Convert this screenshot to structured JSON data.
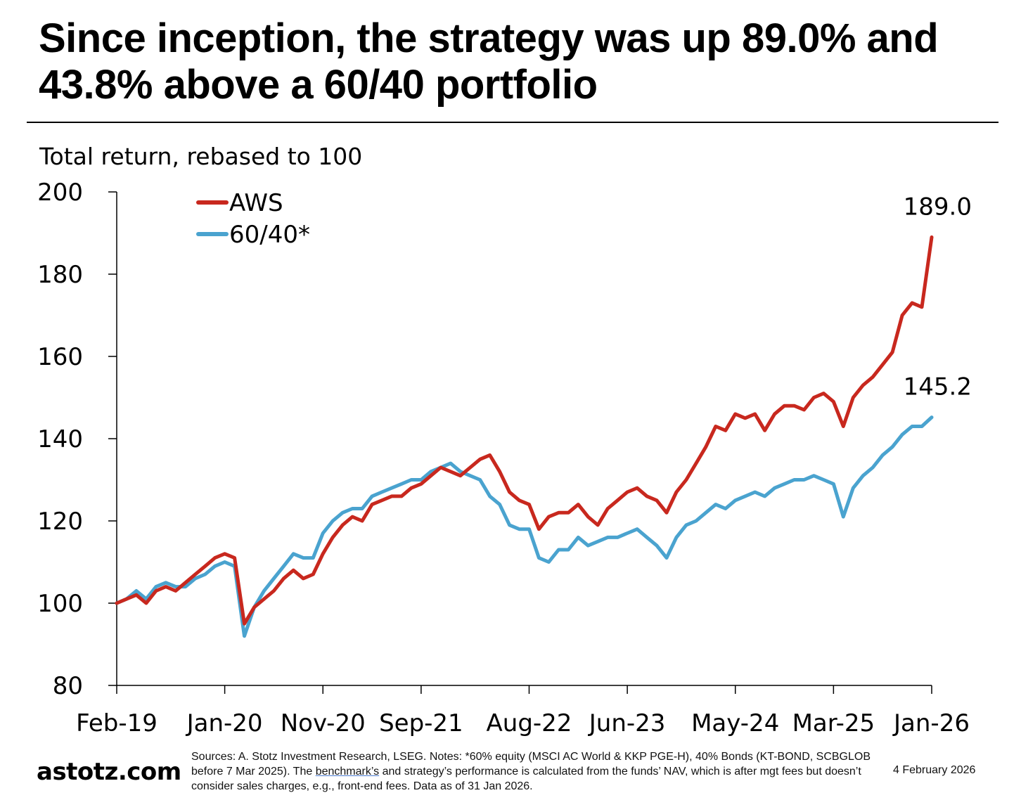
{
  "title": "Since inception, the strategy was up 89.0% and 43.8% above a 60/40 portfolio",
  "footer": {
    "brand": "astotz.com",
    "sources_prefix": "Sources: A. Stotz Investment Research, LSEG. Notes: *60% equity (MSCI AC World & KKP PGE-H), 40% Bonds (KT-BOND, SCBGLOB before 7 Mar 2025). The ",
    "sources_link": "benchmark’s",
    "sources_suffix": " and strategy’s performance is calculated from the funds’ NAV, which is after mgt fees but doesn’t consider sales charges, e.g., front-end fees. Data as of 31 Jan 2026.",
    "date": "4 February 2026"
  },
  "chart_data": {
    "type": "line",
    "title": "",
    "ylabel": "Total return, rebased to 100",
    "xlabel": "",
    "ylim": [
      80,
      200
    ],
    "yticks": [
      80,
      100,
      120,
      140,
      160,
      180,
      200
    ],
    "xticks": [
      "Feb-19",
      "Jan-20",
      "Nov-20",
      "Sep-21",
      "Aug-22",
      "Jun-23",
      "May-24",
      "Mar-25",
      "Jan-26"
    ],
    "x_range_months": [
      "Feb-19",
      "Jan-26"
    ],
    "legend_position": "top-left",
    "grid": false,
    "series": [
      {
        "name": "AWS",
        "color": "#c8281e",
        "end_label": "189.0",
        "points": [
          [
            "Feb-19",
            100
          ],
          [
            "Mar-19",
            101
          ],
          [
            "Apr-19",
            102
          ],
          [
            "May-19",
            100
          ],
          [
            "Jun-19",
            103
          ],
          [
            "Jul-19",
            104
          ],
          [
            "Aug-19",
            103
          ],
          [
            "Sep-19",
            105
          ],
          [
            "Oct-19",
            107
          ],
          [
            "Nov-19",
            109
          ],
          [
            "Dec-19",
            111
          ],
          [
            "Jan-20",
            112
          ],
          [
            "Feb-20",
            111
          ],
          [
            "Mar-20",
            95
          ],
          [
            "Apr-20",
            99
          ],
          [
            "May-20",
            101
          ],
          [
            "Jun-20",
            103
          ],
          [
            "Jul-20",
            106
          ],
          [
            "Aug-20",
            108
          ],
          [
            "Sep-20",
            106
          ],
          [
            "Oct-20",
            107
          ],
          [
            "Nov-20",
            112
          ],
          [
            "Dec-20",
            116
          ],
          [
            "Jan-21",
            119
          ],
          [
            "Feb-21",
            121
          ],
          [
            "Mar-21",
            120
          ],
          [
            "Apr-21",
            124
          ],
          [
            "May-21",
            125
          ],
          [
            "Jun-21",
            126
          ],
          [
            "Jul-21",
            126
          ],
          [
            "Aug-21",
            128
          ],
          [
            "Sep-21",
            129
          ],
          [
            "Oct-21",
            131
          ],
          [
            "Nov-21",
            133
          ],
          [
            "Dec-21",
            132
          ],
          [
            "Jan-22",
            131
          ],
          [
            "Feb-22",
            133
          ],
          [
            "Mar-22",
            135
          ],
          [
            "Apr-22",
            136
          ],
          [
            "May-22",
            132
          ],
          [
            "Jun-22",
            127
          ],
          [
            "Jul-22",
            125
          ],
          [
            "Aug-22",
            124
          ],
          [
            "Sep-22",
            118
          ],
          [
            "Oct-22",
            121
          ],
          [
            "Nov-22",
            122
          ],
          [
            "Dec-22",
            122
          ],
          [
            "Jan-23",
            124
          ],
          [
            "Feb-23",
            121
          ],
          [
            "Mar-23",
            119
          ],
          [
            "Apr-23",
            123
          ],
          [
            "May-23",
            125
          ],
          [
            "Jun-23",
            127
          ],
          [
            "Jul-23",
            128
          ],
          [
            "Aug-23",
            126
          ],
          [
            "Sep-23",
            125
          ],
          [
            "Oct-23",
            122
          ],
          [
            "Nov-23",
            127
          ],
          [
            "Dec-23",
            130
          ],
          [
            "Jan-24",
            134
          ],
          [
            "Feb-24",
            138
          ],
          [
            "Mar-24",
            143
          ],
          [
            "Apr-24",
            142
          ],
          [
            "May-24",
            146
          ],
          [
            "Jun-24",
            145
          ],
          [
            "Jul-24",
            146
          ],
          [
            "Aug-24",
            142
          ],
          [
            "Sep-24",
            146
          ],
          [
            "Oct-24",
            148
          ],
          [
            "Nov-24",
            148
          ],
          [
            "Dec-24",
            147
          ],
          [
            "Jan-25",
            150
          ],
          [
            "Feb-25",
            151
          ],
          [
            "Mar-25",
            149
          ],
          [
            "Apr-25",
            143
          ],
          [
            "May-25",
            150
          ],
          [
            "Jun-25",
            153
          ],
          [
            "Jul-25",
            155
          ],
          [
            "Aug-25",
            158
          ],
          [
            "Sep-25",
            161
          ],
          [
            "Oct-25",
            170
          ],
          [
            "Nov-25",
            173
          ],
          [
            "Dec-25",
            172
          ],
          [
            "Jan-26",
            189.0
          ]
        ]
      },
      {
        "name": "60/40*",
        "color": "#4aa3cf",
        "end_label": "145.2",
        "points": [
          [
            "Feb-19",
            100
          ],
          [
            "Mar-19",
            101
          ],
          [
            "Apr-19",
            103
          ],
          [
            "May-19",
            101
          ],
          [
            "Jun-19",
            104
          ],
          [
            "Jul-19",
            105
          ],
          [
            "Aug-19",
            104
          ],
          [
            "Sep-19",
            104
          ],
          [
            "Oct-19",
            106
          ],
          [
            "Nov-19",
            107
          ],
          [
            "Dec-19",
            109
          ],
          [
            "Jan-20",
            110
          ],
          [
            "Feb-20",
            109
          ],
          [
            "Mar-20",
            92
          ],
          [
            "Apr-20",
            99
          ],
          [
            "May-20",
            103
          ],
          [
            "Jun-20",
            106
          ],
          [
            "Jul-20",
            109
          ],
          [
            "Aug-20",
            112
          ],
          [
            "Sep-20",
            111
          ],
          [
            "Oct-20",
            111
          ],
          [
            "Nov-20",
            117
          ],
          [
            "Dec-20",
            120
          ],
          [
            "Jan-21",
            122
          ],
          [
            "Feb-21",
            123
          ],
          [
            "Mar-21",
            123
          ],
          [
            "Apr-21",
            126
          ],
          [
            "May-21",
            127
          ],
          [
            "Jun-21",
            128
          ],
          [
            "Jul-21",
            129
          ],
          [
            "Aug-21",
            130
          ],
          [
            "Sep-21",
            130
          ],
          [
            "Oct-21",
            132
          ],
          [
            "Nov-21",
            133
          ],
          [
            "Dec-21",
            134
          ],
          [
            "Jan-22",
            132
          ],
          [
            "Feb-22",
            131
          ],
          [
            "Mar-22",
            130
          ],
          [
            "Apr-22",
            126
          ],
          [
            "May-22",
            124
          ],
          [
            "Jun-22",
            119
          ],
          [
            "Jul-22",
            118
          ],
          [
            "Aug-22",
            118
          ],
          [
            "Sep-22",
            111
          ],
          [
            "Oct-22",
            110
          ],
          [
            "Nov-22",
            113
          ],
          [
            "Dec-22",
            113
          ],
          [
            "Jan-23",
            116
          ],
          [
            "Feb-23",
            114
          ],
          [
            "Mar-23",
            115
          ],
          [
            "Apr-23",
            116
          ],
          [
            "May-23",
            116
          ],
          [
            "Jun-23",
            117
          ],
          [
            "Jul-23",
            118
          ],
          [
            "Aug-23",
            116
          ],
          [
            "Sep-23",
            114
          ],
          [
            "Oct-23",
            111
          ],
          [
            "Nov-23",
            116
          ],
          [
            "Dec-23",
            119
          ],
          [
            "Jan-24",
            120
          ],
          [
            "Feb-24",
            122
          ],
          [
            "Mar-24",
            124
          ],
          [
            "Apr-24",
            123
          ],
          [
            "May-24",
            125
          ],
          [
            "Jun-24",
            126
          ],
          [
            "Jul-24",
            127
          ],
          [
            "Aug-24",
            126
          ],
          [
            "Sep-24",
            128
          ],
          [
            "Oct-24",
            129
          ],
          [
            "Nov-24",
            130
          ],
          [
            "Dec-24",
            130
          ],
          [
            "Jan-25",
            131
          ],
          [
            "Feb-25",
            130
          ],
          [
            "Mar-25",
            129
          ],
          [
            "Apr-25",
            121
          ],
          [
            "May-25",
            128
          ],
          [
            "Jun-25",
            131
          ],
          [
            "Jul-25",
            133
          ],
          [
            "Aug-25",
            136
          ],
          [
            "Sep-25",
            138
          ],
          [
            "Oct-25",
            141
          ],
          [
            "Nov-25",
            143
          ],
          [
            "Dec-25",
            143
          ],
          [
            "Jan-26",
            145.2
          ]
        ]
      }
    ]
  }
}
